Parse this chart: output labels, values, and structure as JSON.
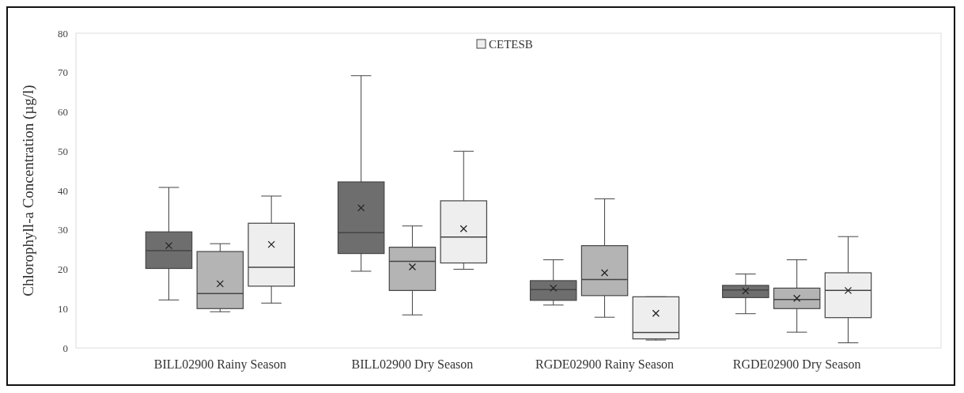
{
  "chart_data": {
    "type": "box",
    "ylabel": "Chlorophyll-a Concentration (µg/l)",
    "categories": [
      "BILL02900 Rainy Season",
      "BILL02900 Dry Season",
      "RGDE02900 Rainy Season",
      "RGDE02900 Dry Season"
    ],
    "ylim": [
      0,
      80
    ],
    "yticks": [
      0,
      10,
      20,
      30,
      40,
      50,
      60,
      70,
      80
    ],
    "legend": "top",
    "grid": false,
    "series": [
      {
        "color": "#6e6e6e",
        "boxes": [
          {
            "low": 12.2,
            "q1": 20.2,
            "median": 24.7,
            "q3": 29.5,
            "high": 40.8,
            "mean": 26
          },
          {
            "low": 19.5,
            "q1": 24,
            "median": 29.3,
            "q3": 42.2,
            "high": 69.2,
            "mean": 35.6
          },
          {
            "low": 10.9,
            "q1": 12.1,
            "median": 14.8,
            "q3": 17.1,
            "high": 22.4,
            "mean": 15.2
          },
          {
            "low": 8.7,
            "q1": 12.8,
            "median": 14.7,
            "q3": 15.9,
            "high": 18.8,
            "mean": 14.5
          }
        ]
      },
      {
        "color": "#b4b4b4",
        "boxes": [
          {
            "low": 9.2,
            "q1": 10,
            "median": 13.8,
            "q3": 24.5,
            "high": 26.5,
            "mean": 16.3
          },
          {
            "low": 8.4,
            "q1": 14.6,
            "median": 22,
            "q3": 25.6,
            "high": 31,
            "mean": 20.6
          },
          {
            "low": 7.8,
            "q1": 13.3,
            "median": 17.4,
            "q3": 26,
            "high": 37.9,
            "mean": 19.1
          },
          {
            "low": 4,
            "q1": 10,
            "median": 12.3,
            "q3": 15.2,
            "high": 22.4,
            "mean": 12.6
          }
        ]
      },
      {
        "name": "CETESB",
        "color": "#eeeeee",
        "boxes": [
          {
            "low": 11.4,
            "q1": 15.7,
            "median": 20.5,
            "q3": 31.7,
            "high": 38.6,
            "mean": 26.3
          },
          {
            "low": 20,
            "q1": 21.6,
            "median": 28.2,
            "q3": 37.4,
            "high": 50,
            "mean": 30.3
          },
          {
            "low": 2,
            "q1": 2.3,
            "median": 3.9,
            "q3": 13,
            "high": 13,
            "mean": 8.8
          },
          {
            "low": 1.3,
            "q1": 7.7,
            "median": 14.6,
            "q3": 19.1,
            "high": 28.3,
            "mean": 14.6
          }
        ]
      }
    ]
  }
}
